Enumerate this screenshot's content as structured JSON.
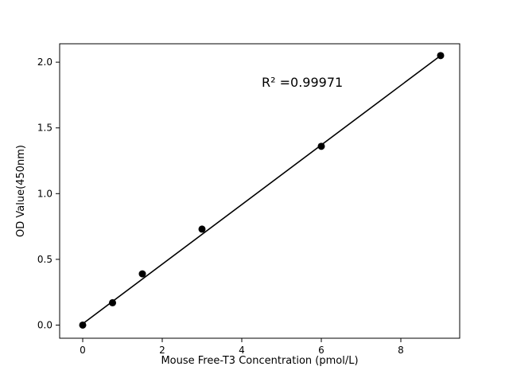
{
  "chart_data": {
    "type": "scatter",
    "title": "",
    "xlabel": "Mouse Free-T3 Concentration (pmol/L)",
    "ylabel": "OD Value(450nm)",
    "x": [
      0,
      0.75,
      1.5,
      3,
      6,
      9
    ],
    "y": [
      0.0,
      0.17,
      0.39,
      0.73,
      1.36,
      2.05
    ],
    "fit_line": {
      "x1": 0,
      "y1": 0.01,
      "x2": 9,
      "y2": 2.05
    },
    "annotation": {
      "text": "R² =0.99971",
      "x": 4.5,
      "y": 1.85
    },
    "xlim": [
      -0.58,
      9.48
    ],
    "ylim": [
      -0.1,
      2.14
    ],
    "xticks": [
      0,
      2,
      4,
      6,
      8
    ],
    "xtick_labels": [
      "0",
      "2",
      "4",
      "6",
      "8"
    ],
    "yticks": [
      0.0,
      0.5,
      1.0,
      1.5,
      2.0
    ],
    "ytick_labels": [
      "0.0",
      "0.5",
      "1.0",
      "1.5",
      "2.0"
    ],
    "legend": null,
    "grid": false,
    "marker_color": "#000000",
    "line_color": "#000000",
    "background_color": "#ffffff"
  }
}
